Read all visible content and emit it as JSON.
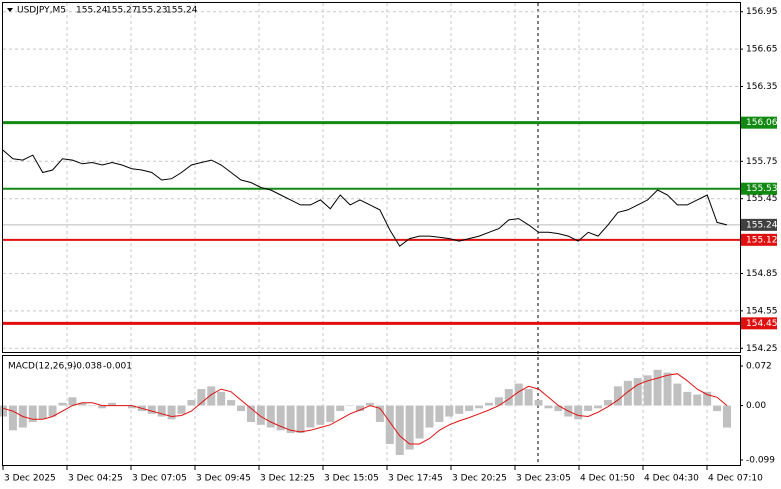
{
  "chart_data": [
    {
      "type": "line",
      "symbol": "USDJPY,M5",
      "ohlc": [
        155.24,
        155.27,
        155.23,
        155.24
      ],
      "color": "#000000",
      "values": [
        155.84,
        155.77,
        155.76,
        155.8,
        155.66,
        155.68,
        155.77,
        155.76,
        155.73,
        155.74,
        155.72,
        155.74,
        155.72,
        155.69,
        155.68,
        155.66,
        155.6,
        155.61,
        155.66,
        155.72,
        155.74,
        155.76,
        155.72,
        155.66,
        155.6,
        155.58,
        155.54,
        155.52,
        155.48,
        155.44,
        155.4,
        155.4,
        155.44,
        155.37,
        155.48,
        155.4,
        155.44,
        155.4,
        155.36,
        155.2,
        155.07,
        155.13,
        155.15,
        155.15,
        155.14,
        155.13,
        155.11,
        155.13,
        155.15,
        155.18,
        155.21,
        155.28,
        155.29,
        155.24,
        155.18,
        155.18,
        155.17,
        155.15,
        155.11,
        155.18,
        155.15,
        155.24,
        155.34,
        155.36,
        155.4,
        155.44,
        155.52,
        155.48,
        155.4,
        155.4,
        155.44,
        155.48,
        155.26,
        155.24
      ],
      "ylim": [
        154.22,
        157.02
      ],
      "yticks": [
        156.95,
        156.65,
        156.35,
        155.75,
        155.45,
        154.85,
        154.55,
        154.25
      ],
      "grid": true,
      "levels": [
        {
          "value": 156.06,
          "color": "#128a12",
          "width": 3
        },
        {
          "value": 155.53,
          "color": "#128a12",
          "width": 2
        },
        {
          "value": 155.12,
          "color": "#e01010",
          "width": 2
        },
        {
          "value": 154.45,
          "color": "#e01010",
          "width": 3
        }
      ],
      "current_price": 155.24
    },
    {
      "type": "macd",
      "title": "MACD(12,26,9)",
      "readings": [
        -0.038,
        -0.001
      ],
      "histogram": {
        "color": "#c0c0c0",
        "values": [
          -0.02,
          -0.045,
          -0.04,
          -0.03,
          -0.025,
          -0.02,
          0.005,
          0.015,
          0.005,
          0.0,
          -0.005,
          0.005,
          0.0,
          -0.005,
          -0.01,
          -0.015,
          -0.02,
          -0.025,
          -0.015,
          0.01,
          0.03,
          0.035,
          0.025,
          0.01,
          -0.01,
          -0.03,
          -0.035,
          -0.04,
          -0.045,
          -0.05,
          -0.05,
          -0.04,
          -0.035,
          -0.03,
          -0.01,
          0.0,
          -0.01,
          0.005,
          -0.03,
          -0.07,
          -0.09,
          -0.08,
          -0.06,
          -0.04,
          -0.03,
          -0.02,
          -0.015,
          -0.01,
          -0.005,
          0.005,
          0.015,
          0.03,
          0.04,
          0.03,
          0.01,
          -0.005,
          -0.01,
          -0.02,
          -0.025,
          -0.01,
          -0.005,
          0.01,
          0.035,
          0.045,
          0.05,
          0.055,
          0.065,
          0.06,
          0.04,
          0.025,
          0.02,
          0.025,
          -0.01,
          -0.04
        ]
      },
      "signal": {
        "color": "#e01010",
        "values": [
          -0.005,
          -0.01,
          -0.02,
          -0.025,
          -0.025,
          -0.02,
          -0.01,
          0.0,
          0.005,
          0.005,
          0.0,
          0.0,
          0.0,
          0.0,
          -0.005,
          -0.01,
          -0.015,
          -0.02,
          -0.018,
          -0.01,
          0.005,
          0.02,
          0.03,
          0.025,
          0.01,
          -0.005,
          -0.02,
          -0.03,
          -0.038,
          -0.045,
          -0.048,
          -0.045,
          -0.04,
          -0.035,
          -0.025,
          -0.015,
          -0.008,
          0.0,
          -0.005,
          -0.03,
          -0.055,
          -0.07,
          -0.07,
          -0.06,
          -0.045,
          -0.035,
          -0.028,
          -0.022,
          -0.015,
          -0.008,
          0.0,
          0.012,
          0.025,
          0.035,
          0.03,
          0.015,
          0.0,
          -0.01,
          -0.018,
          -0.02,
          -0.012,
          -0.002,
          0.01,
          0.025,
          0.038,
          0.045,
          0.05,
          0.055,
          0.058,
          0.045,
          0.03,
          0.02,
          0.015,
          0.0
        ]
      },
      "ylim": [
        -0.11,
        0.0902
      ],
      "yticks": [
        0.072,
        {
          "value": 0,
          "label": "0.00"
        },
        -0.099
      ],
      "time_labels": [
        "3 Dec 2025",
        "3 Dec 04:25",
        "3 Dec 07:05",
        "3 Dec 09:45",
        "3 Dec 12:25",
        "3 Dec 15:05",
        "3 Dec 17:45",
        "3 Dec 20:25",
        "3 Dec 23:05",
        "4 Dec 01:50",
        "4 Dec 04:30",
        "4 Dec 07:10"
      ]
    }
  ]
}
